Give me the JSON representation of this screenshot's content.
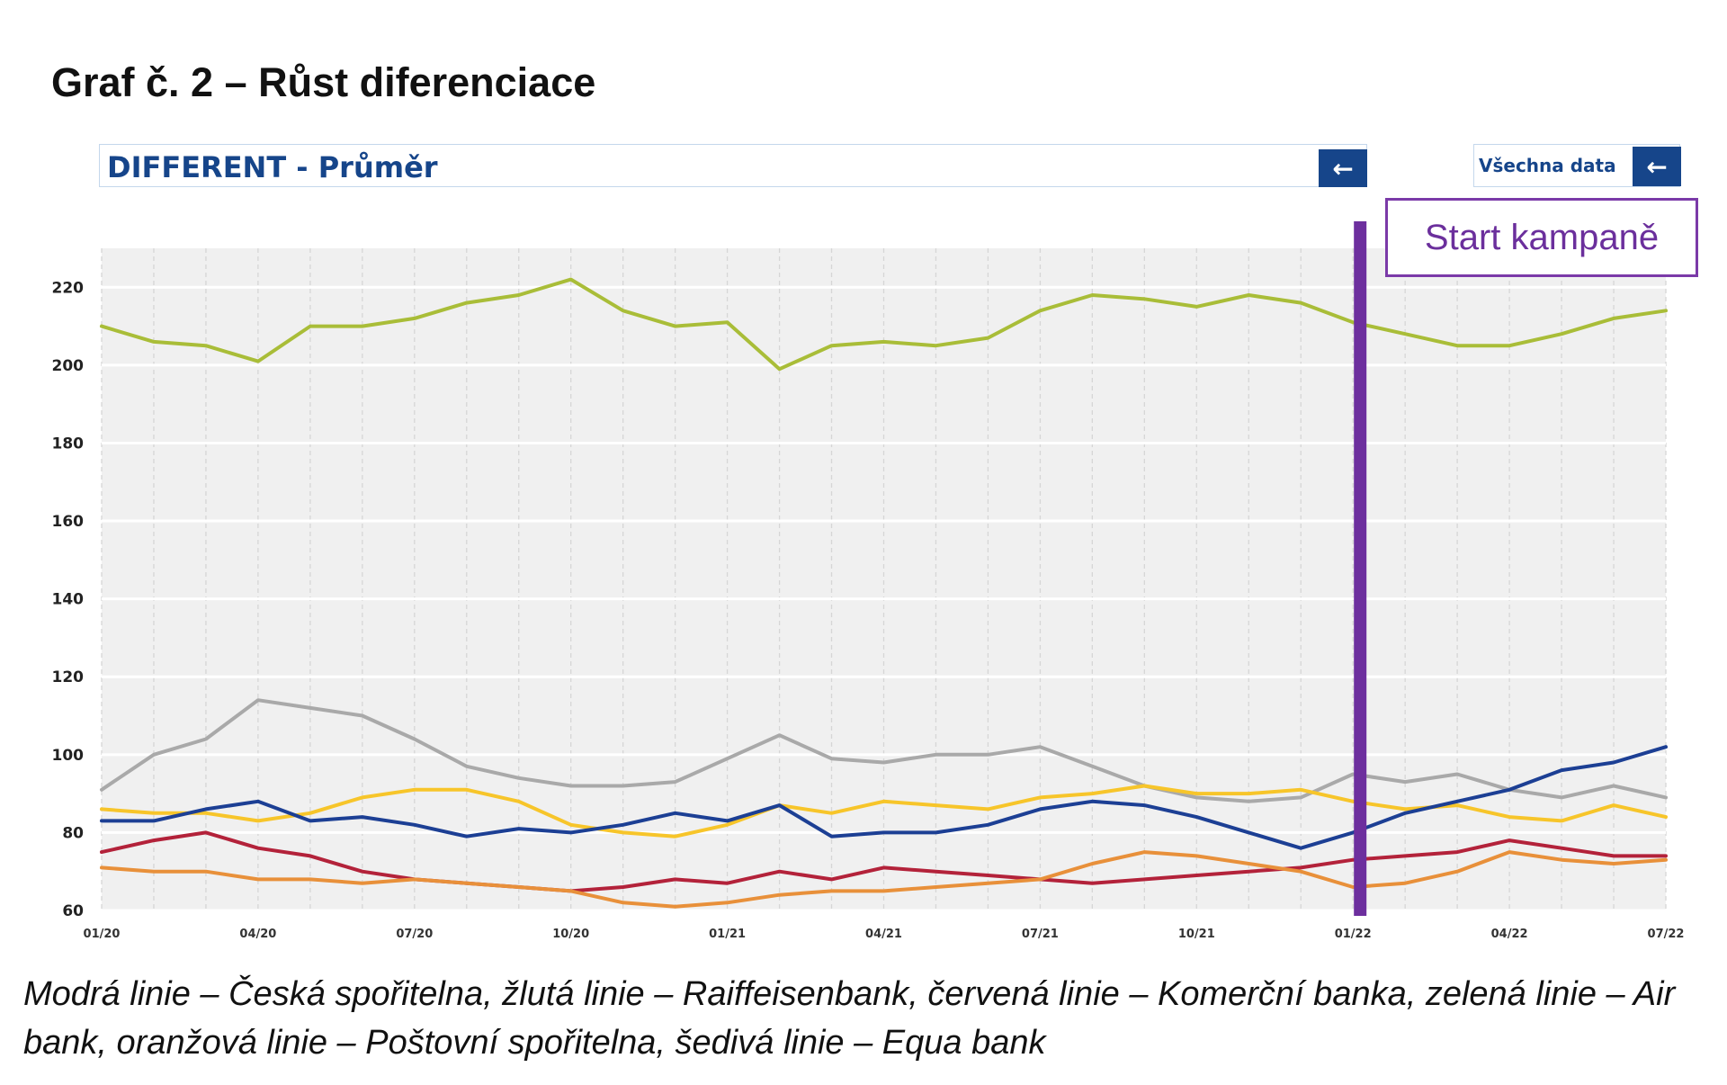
{
  "title": "Graf č. 2 – Růst diferenciace",
  "selector": {
    "label": "DIFFERENT - Průměr",
    "back_icon": "arrow-left-icon"
  },
  "all_data": {
    "label": "Všechna data",
    "back_icon": "arrow-left-icon"
  },
  "campaign_label": "Start kampaně",
  "caption": "Modrá linie – Česká spořitelna, žlutá linie – Raiffeisenbank, červená linie – Komerční banka, zelená linie – Air bank, oranžová linie – Poštovní spořitelna, šedivá linie – Equa bank",
  "colors": {
    "plot_bg": "#f0f0f0",
    "campaign_line": "#6d2f9e",
    "blue": "#1c3f94",
    "yellow": "#f7c52a",
    "red": "#b3223a",
    "green": "#a9bd38",
    "orange": "#e8903a",
    "gray": "#a9a9a9"
  },
  "chart_data": {
    "type": "line",
    "x_type": "month",
    "x_ticks": [
      "01/20",
      "04/20",
      "07/20",
      "10/20",
      "01/21",
      "04/21",
      "07/21",
      "10/21",
      "01/22",
      "04/22",
      "07/22"
    ],
    "xlim": [
      "2020-01",
      "2022-07"
    ],
    "ylim": [
      60,
      230
    ],
    "y_ticks": [
      60,
      80,
      100,
      120,
      140,
      160,
      180,
      200,
      220
    ],
    "grid": true,
    "campaign_start": "2022-01",
    "series": [
      {
        "color_key": "green",
        "x": [
          "2020-01",
          "2020-02",
          "2020-03",
          "2020-04",
          "2020-05",
          "2020-06",
          "2020-07",
          "2020-08",
          "2020-09",
          "2020-10",
          "2020-11",
          "2020-12",
          "2021-01",
          "2021-02",
          "2021-03",
          "2021-04",
          "2021-05",
          "2021-06",
          "2021-07",
          "2021-08",
          "2021-09",
          "2021-10",
          "2021-11",
          "2021-12",
          "2022-01",
          "2022-02",
          "2022-03",
          "2022-04",
          "2022-05",
          "2022-06",
          "2022-07"
        ],
        "values": [
          210,
          206,
          205,
          201,
          210,
          210,
          212,
          216,
          218,
          222,
          214,
          210,
          211,
          199,
          205,
          206,
          205,
          207,
          214,
          218,
          217,
          215,
          218,
          216,
          211,
          208,
          205,
          205,
          208,
          212,
          214
        ]
      },
      {
        "color_key": "gray",
        "x": [
          "2020-01",
          "2020-02",
          "2020-03",
          "2020-04",
          "2020-05",
          "2020-06",
          "2020-07",
          "2020-08",
          "2020-09",
          "2020-10",
          "2020-11",
          "2020-12",
          "2021-01",
          "2021-02",
          "2021-03",
          "2021-04",
          "2021-05",
          "2021-06",
          "2021-07",
          "2021-08",
          "2021-09",
          "2021-10",
          "2021-11",
          "2021-12",
          "2022-01",
          "2022-02",
          "2022-03",
          "2022-04",
          "2022-05",
          "2022-06",
          "2022-07"
        ],
        "values": [
          91,
          100,
          104,
          114,
          112,
          110,
          104,
          97,
          94,
          92,
          92,
          93,
          99,
          105,
          99,
          98,
          100,
          100,
          102,
          97,
          92,
          89,
          88,
          89,
          95,
          93,
          95,
          91,
          89,
          92,
          89
        ]
      },
      {
        "color_key": "yellow",
        "x": [
          "2020-01",
          "2020-02",
          "2020-03",
          "2020-04",
          "2020-05",
          "2020-06",
          "2020-07",
          "2020-08",
          "2020-09",
          "2020-10",
          "2020-11",
          "2020-12",
          "2021-01",
          "2021-02",
          "2021-03",
          "2021-04",
          "2021-05",
          "2021-06",
          "2021-07",
          "2021-08",
          "2021-09",
          "2021-10",
          "2021-11",
          "2021-12",
          "2022-01",
          "2022-02",
          "2022-03",
          "2022-04",
          "2022-05",
          "2022-06",
          "2022-07"
        ],
        "values": [
          86,
          85,
          85,
          83,
          85,
          89,
          91,
          91,
          88,
          82,
          80,
          79,
          82,
          87,
          85,
          88,
          87,
          86,
          89,
          90,
          92,
          90,
          90,
          91,
          88,
          86,
          87,
          84,
          83,
          87,
          84
        ]
      },
      {
        "color_key": "blue",
        "x": [
          "2020-01",
          "2020-02",
          "2020-03",
          "2020-04",
          "2020-05",
          "2020-06",
          "2020-07",
          "2020-08",
          "2020-09",
          "2020-10",
          "2020-11",
          "2020-12",
          "2021-01",
          "2021-02",
          "2021-03",
          "2021-04",
          "2021-05",
          "2021-06",
          "2021-07",
          "2021-08",
          "2021-09",
          "2021-10",
          "2021-11",
          "2021-12",
          "2022-01",
          "2022-02",
          "2022-03",
          "2022-04",
          "2022-05",
          "2022-06",
          "2022-07"
        ],
        "values": [
          83,
          83,
          86,
          88,
          83,
          84,
          82,
          79,
          81,
          80,
          82,
          85,
          83,
          87,
          79,
          80,
          80,
          82,
          86,
          88,
          87,
          84,
          80,
          76,
          80,
          85,
          88,
          91,
          96,
          98,
          102
        ]
      },
      {
        "color_key": "red",
        "x": [
          "2020-01",
          "2020-02",
          "2020-03",
          "2020-04",
          "2020-05",
          "2020-06",
          "2020-07",
          "2020-08",
          "2020-09",
          "2020-10",
          "2020-11",
          "2020-12",
          "2021-01",
          "2021-02",
          "2021-03",
          "2021-04",
          "2021-05",
          "2021-06",
          "2021-07",
          "2021-08",
          "2021-09",
          "2021-10",
          "2021-11",
          "2021-12",
          "2022-01",
          "2022-02",
          "2022-03",
          "2022-04",
          "2022-05",
          "2022-06",
          "2022-07"
        ],
        "values": [
          75,
          78,
          80,
          76,
          74,
          70,
          68,
          67,
          66,
          65,
          66,
          68,
          67,
          70,
          68,
          71,
          70,
          69,
          68,
          67,
          68,
          69,
          70,
          71,
          73,
          74,
          75,
          78,
          76,
          74,
          74
        ]
      },
      {
        "color_key": "orange",
        "x": [
          "2020-01",
          "2020-02",
          "2020-03",
          "2020-04",
          "2020-05",
          "2020-06",
          "2020-07",
          "2020-08",
          "2020-09",
          "2020-10",
          "2020-11",
          "2020-12",
          "2021-01",
          "2021-02",
          "2021-03",
          "2021-04",
          "2021-05",
          "2021-06",
          "2021-07",
          "2021-08",
          "2021-09",
          "2021-10",
          "2021-11",
          "2021-12",
          "2022-01",
          "2022-02",
          "2022-03",
          "2022-04",
          "2022-05",
          "2022-06",
          "2022-07"
        ],
        "values": [
          71,
          70,
          70,
          68,
          68,
          67,
          68,
          67,
          66,
          65,
          62,
          61,
          62,
          64,
          65,
          65,
          66,
          67,
          68,
          72,
          75,
          74,
          72,
          70,
          66,
          67,
          70,
          75,
          73,
          72,
          73
        ]
      }
    ]
  }
}
